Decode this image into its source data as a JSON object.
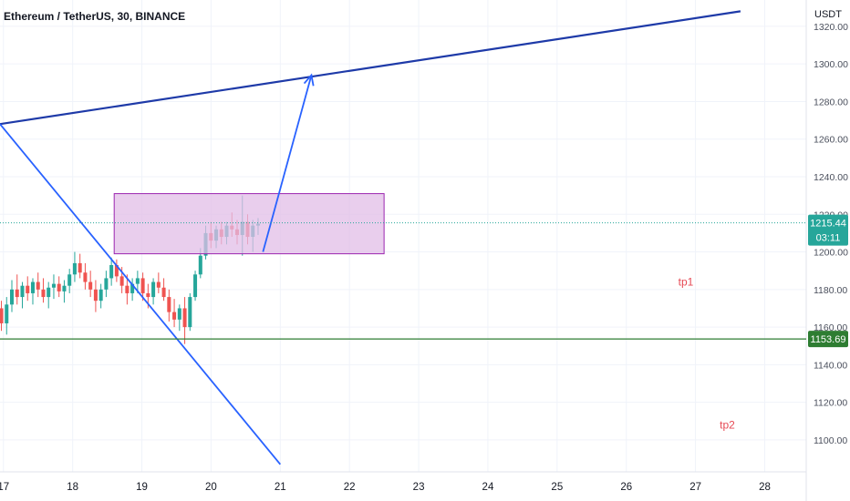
{
  "header": {
    "title": "Ethereum / TetherUS, 30, BINANCE",
    "currency": "USDT"
  },
  "colors": {
    "up": "#26a69a",
    "down": "#ef5350",
    "trendline": "#1e3aa8",
    "drawing": "#2962ff",
    "rectangle_fill": "#e1bee7",
    "rectangle_border": "#9c27b0",
    "support": "#2e7d32",
    "note": "#e64a55",
    "price_tag": "#26a69a",
    "support_tag": "#2e7d32"
  },
  "chart_data": {
    "type": "candlestick",
    "symbol": "Ethereum / TetherUS",
    "interval": "30",
    "exchange": "BINANCE",
    "x_ticks": [
      "17",
      "18",
      "19",
      "20",
      "21",
      "22",
      "23",
      "24",
      "25",
      "26",
      "27",
      "28"
    ],
    "y_ticks": [
      "1320.00",
      "1300.00",
      "1280.00",
      "1260.00",
      "1240.00",
      "1220.00",
      "1200.00",
      "1180.00",
      "1160.00",
      "1140.00",
      "1120.00",
      "1100.00"
    ],
    "y_tick_values": [
      1320,
      1300,
      1280,
      1260,
      1240,
      1220,
      1200,
      1180,
      1160,
      1140,
      1120,
      1100
    ],
    "ylim": [
      1083,
      1334
    ],
    "xlim": [
      16.95,
      28.6
    ],
    "candles": [
      [
        1170,
        1174,
        1158,
        1162
      ],
      [
        1162,
        1176,
        1156,
        1172
      ],
      [
        1172,
        1185,
        1168,
        1180
      ],
      [
        1180,
        1188,
        1172,
        1176
      ],
      [
        1176,
        1184,
        1170,
        1182
      ],
      [
        1182,
        1187,
        1174,
        1178
      ],
      [
        1178,
        1186,
        1172,
        1184
      ],
      [
        1184,
        1189,
        1176,
        1180
      ],
      [
        1180,
        1186,
        1173,
        1176
      ],
      [
        1176,
        1184,
        1170,
        1181
      ],
      [
        1181,
        1188,
        1175,
        1183
      ],
      [
        1183,
        1187,
        1176,
        1179
      ],
      [
        1179,
        1185,
        1173,
        1182
      ],
      [
        1182,
        1191,
        1178,
        1188
      ],
      [
        1188,
        1200,
        1184,
        1194
      ],
      [
        1194,
        1199,
        1186,
        1189
      ],
      [
        1189,
        1194,
        1180,
        1184
      ],
      [
        1184,
        1190,
        1176,
        1180
      ],
      [
        1180,
        1185,
        1168,
        1174
      ],
      [
        1174,
        1183,
        1170,
        1180
      ],
      [
        1180,
        1190,
        1176,
        1186
      ],
      [
        1186,
        1197,
        1182,
        1193
      ],
      [
        1193,
        1196,
        1184,
        1187
      ],
      [
        1187,
        1192,
        1178,
        1182
      ],
      [
        1182,
        1188,
        1172,
        1178
      ],
      [
        1178,
        1186,
        1174,
        1183
      ],
      [
        1183,
        1190,
        1178,
        1186
      ],
      [
        1186,
        1189,
        1174,
        1178
      ],
      [
        1178,
        1183,
        1170,
        1176
      ],
      [
        1176,
        1186,
        1172,
        1184
      ],
      [
        1184,
        1189,
        1178,
        1181
      ],
      [
        1181,
        1186,
        1174,
        1176
      ],
      [
        1176,
        1180,
        1163,
        1168
      ],
      [
        1168,
        1175,
        1160,
        1164
      ],
      [
        1164,
        1172,
        1158,
        1170
      ],
      [
        1170,
        1176,
        1151,
        1160
      ],
      [
        1160,
        1178,
        1158,
        1176
      ],
      [
        1176,
        1190,
        1174,
        1188
      ],
      [
        1188,
        1202,
        1186,
        1198
      ],
      [
        1198,
        1214,
        1196,
        1210
      ],
      [
        1210,
        1216,
        1202,
        1206
      ],
      [
        1206,
        1214,
        1202,
        1212
      ],
      [
        1212,
        1216,
        1204,
        1208
      ],
      [
        1208,
        1216,
        1204,
        1214
      ],
      [
        1214,
        1221,
        1208,
        1212
      ],
      [
        1212,
        1217,
        1204,
        1209
      ],
      [
        1209,
        1230,
        1198,
        1216
      ],
      [
        1216,
        1220,
        1204,
        1208
      ],
      [
        1208,
        1217,
        1200,
        1214
      ],
      [
        1214,
        1218,
        1209,
        1215
      ]
    ],
    "candle_x_start": 16.97,
    "candle_x_step": 0.0757,
    "current_price": 1215.44,
    "countdown": "03:11",
    "support_level": 1153.69,
    "support_label": "1153.69",
    "current_price_label": "1215.44",
    "drawings": {
      "trendline": [
        [
          16.95,
          1268
        ],
        [
          27.65,
          1328
        ]
      ],
      "descending_line": [
        [
          16.95,
          1268
        ],
        [
          21.0,
          1087
        ]
      ],
      "rectangle": {
        "x": [
          18.6,
          22.5
        ],
        "y": [
          1199,
          1231
        ]
      },
      "arrow": [
        [
          20.75,
          1200
        ],
        [
          21.45,
          1294
        ]
      ]
    },
    "annotations": [
      {
        "text": "tp1",
        "x": 26.75,
        "y": 1182
      },
      {
        "text": "tp2",
        "x": 27.35,
        "y": 1106
      }
    ]
  }
}
